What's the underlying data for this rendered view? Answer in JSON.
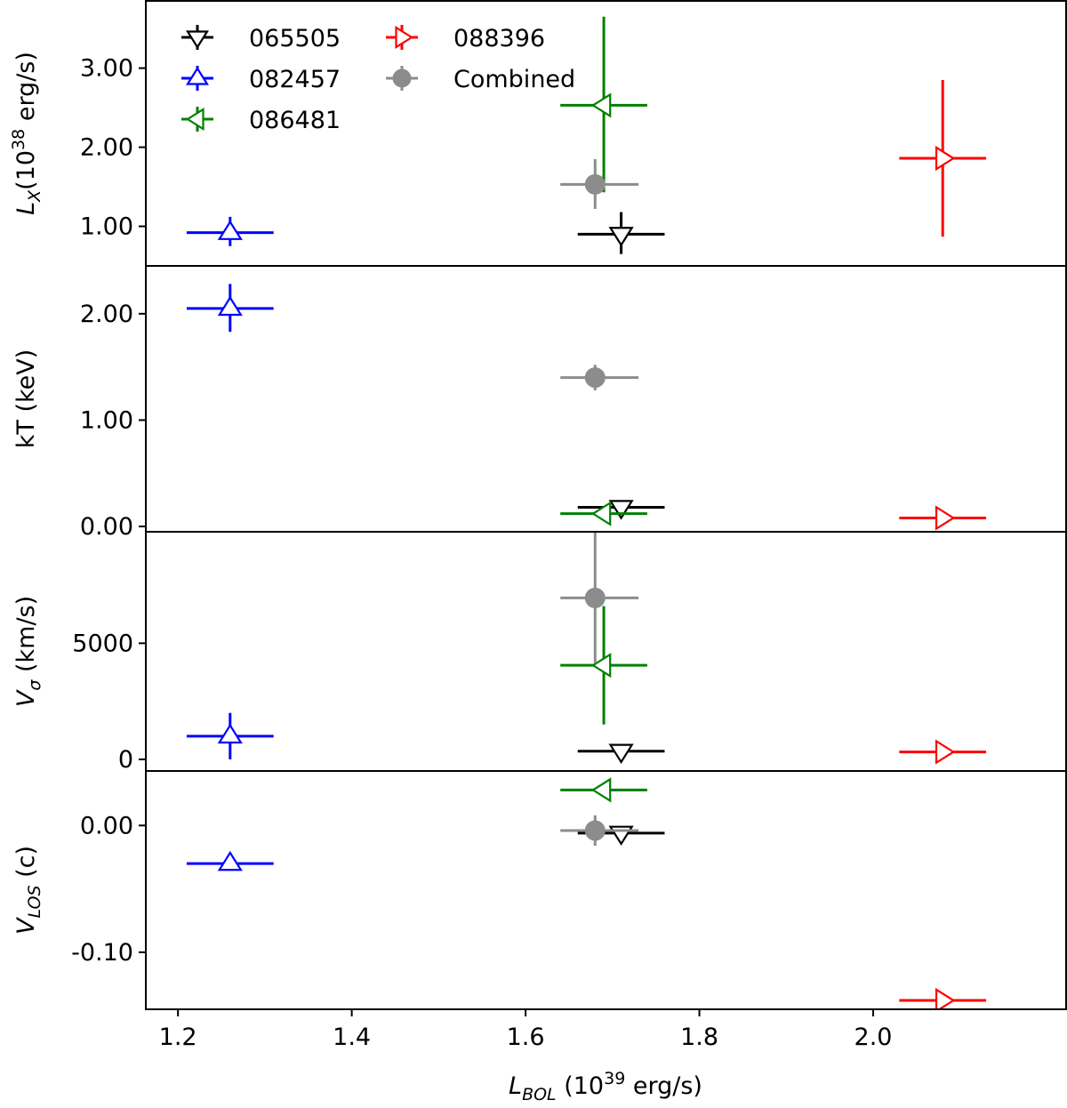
{
  "chart_data": {
    "type": "scatter",
    "layout": "4 vertically stacked panels, shared x axis, asymmetric error bars",
    "xlabel": "L_BOL (10^39 erg/s)",
    "xlim": [
      1.163,
      2.222
    ],
    "xticks": [
      1.2,
      1.4,
      1.6,
      1.8,
      2.0
    ],
    "xtick_labels": [
      "1.2",
      "1.4",
      "1.6",
      "1.8",
      "2.0"
    ],
    "series": [
      {
        "name": "065505",
        "color": "#000000",
        "marker": "triangle-down",
        "filled": false
      },
      {
        "name": "082457",
        "color": "#0000ff",
        "marker": "triangle-up",
        "filled": false
      },
      {
        "name": "086481",
        "color": "#008000",
        "marker": "triangle-left",
        "filled": false
      },
      {
        "name": "088396",
        "color": "#ff0000",
        "marker": "triangle-right",
        "filled": false
      },
      {
        "name": "Combined",
        "color": "#8c8c8c",
        "marker": "circle",
        "filled": true
      }
    ],
    "legend": {
      "location": "top-left",
      "columns": 2,
      "order": [
        "065505",
        "082457",
        "086481",
        "088396",
        "Combined"
      ]
    },
    "panels": [
      {
        "id": "lx",
        "ylabel_main": "L",
        "ylabel_sub": "X",
        "ylabel_tail": "(10",
        "ylabel_sup": "38",
        "ylabel_unit": " erg/s)",
        "ylim": [
          0.5,
          3.85
        ],
        "yticks": [
          1.0,
          2.0,
          3.0
        ],
        "ytick_labels": [
          "1.00",
          "2.00",
          "3.00"
        ],
        "points": [
          {
            "series": "065505",
            "x": 1.71,
            "xlo": 1.66,
            "xhi": 1.76,
            "y": 0.9,
            "ylo": 0.65,
            "yhi": 1.18
          },
          {
            "series": "082457",
            "x": 1.26,
            "xlo": 1.21,
            "xhi": 1.31,
            "y": 0.92,
            "ylo": 0.75,
            "yhi": 1.12
          },
          {
            "series": "086481",
            "x": 1.69,
            "xlo": 1.64,
            "xhi": 1.74,
            "y": 2.53,
            "ylo": 1.43,
            "yhi": 3.65
          },
          {
            "series": "088396",
            "x": 2.08,
            "xlo": 2.03,
            "xhi": 2.13,
            "y": 1.86,
            "ylo": 0.87,
            "yhi": 2.85
          },
          {
            "series": "Combined",
            "x": 1.68,
            "xlo": 1.64,
            "xhi": 1.73,
            "y": 1.53,
            "ylo": 1.22,
            "yhi": 1.85
          }
        ]
      },
      {
        "id": "kt",
        "ylabel_text": "kT (keV)",
        "ylim": [
          -0.05,
          2.45
        ],
        "yticks": [
          0.0,
          1.0,
          2.0
        ],
        "ytick_labels": [
          "0.00",
          "1.00",
          "2.00"
        ],
        "points": [
          {
            "series": "065505",
            "x": 1.71,
            "xlo": 1.66,
            "xhi": 1.76,
            "y": 0.18,
            "ylo": 0.16,
            "yhi": 0.2
          },
          {
            "series": "082457",
            "x": 1.26,
            "xlo": 1.21,
            "xhi": 1.31,
            "y": 2.05,
            "ylo": 1.83,
            "yhi": 2.28
          },
          {
            "series": "086481",
            "x": 1.69,
            "xlo": 1.64,
            "xhi": 1.74,
            "y": 0.12,
            "ylo": 0.1,
            "yhi": 0.14
          },
          {
            "series": "088396",
            "x": 2.08,
            "xlo": 2.03,
            "xhi": 2.13,
            "y": 0.08,
            "ylo": 0.07,
            "yhi": 0.09
          },
          {
            "series": "Combined",
            "x": 1.68,
            "xlo": 1.64,
            "xhi": 1.73,
            "y": 1.4,
            "ylo": 1.28,
            "yhi": 1.52
          }
        ]
      },
      {
        "id": "vsigma",
        "ylabel_main": "V",
        "ylabel_sub": "σ",
        "ylabel_tail": " (km/s)",
        "ylim": [
          -500,
          9800
        ],
        "yticks": [
          0,
          5000
        ],
        "ytick_labels": [
          "0",
          "5000"
        ],
        "points": [
          {
            "series": "065505",
            "x": 1.71,
            "xlo": 1.66,
            "xhi": 1.76,
            "y": 350,
            "ylo": 250,
            "yhi": 500
          },
          {
            "series": "082457",
            "x": 1.26,
            "xlo": 1.21,
            "xhi": 1.31,
            "y": 1000,
            "ylo": 0,
            "yhi": 2000
          },
          {
            "series": "086481",
            "x": 1.69,
            "xlo": 1.64,
            "xhi": 1.74,
            "y": 4050,
            "ylo": 1500,
            "yhi": 6600
          },
          {
            "series": "088396",
            "x": 2.08,
            "xlo": 2.03,
            "xhi": 2.13,
            "y": 320,
            "ylo": 250,
            "yhi": 400
          },
          {
            "series": "Combined",
            "x": 1.68,
            "xlo": 1.64,
            "xhi": 1.73,
            "y": 6950,
            "ylo": 4150,
            "yhi": 9800
          }
        ]
      },
      {
        "id": "vlos",
        "ylabel_main": "V",
        "ylabel_sub": "LOS",
        "ylabel_tail": " (c)",
        "ylim": [
          -0.145,
          0.043
        ],
        "yticks": [
          -0.1,
          0.0
        ],
        "ytick_labels": [
          "-0.10",
          "0.00"
        ],
        "points": [
          {
            "series": "065505",
            "x": 1.71,
            "xlo": 1.66,
            "xhi": 1.76,
            "y": -0.006,
            "ylo": -0.008,
            "yhi": -0.004
          },
          {
            "series": "082457",
            "x": 1.26,
            "xlo": 1.21,
            "xhi": 1.31,
            "y": -0.03,
            "ylo": -0.032,
            "yhi": -0.028
          },
          {
            "series": "086481",
            "x": 1.69,
            "xlo": 1.64,
            "xhi": 1.74,
            "y": 0.028,
            "ylo": 0.026,
            "yhi": 0.03
          },
          {
            "series": "088396",
            "x": 2.08,
            "xlo": 2.03,
            "xhi": 2.13,
            "y": -0.138,
            "ylo": -0.14,
            "yhi": -0.136
          },
          {
            "series": "Combined",
            "x": 1.68,
            "xlo": 1.64,
            "xhi": 1.73,
            "y": -0.004,
            "ylo": -0.016,
            "yhi": 0.008
          }
        ]
      }
    ]
  }
}
